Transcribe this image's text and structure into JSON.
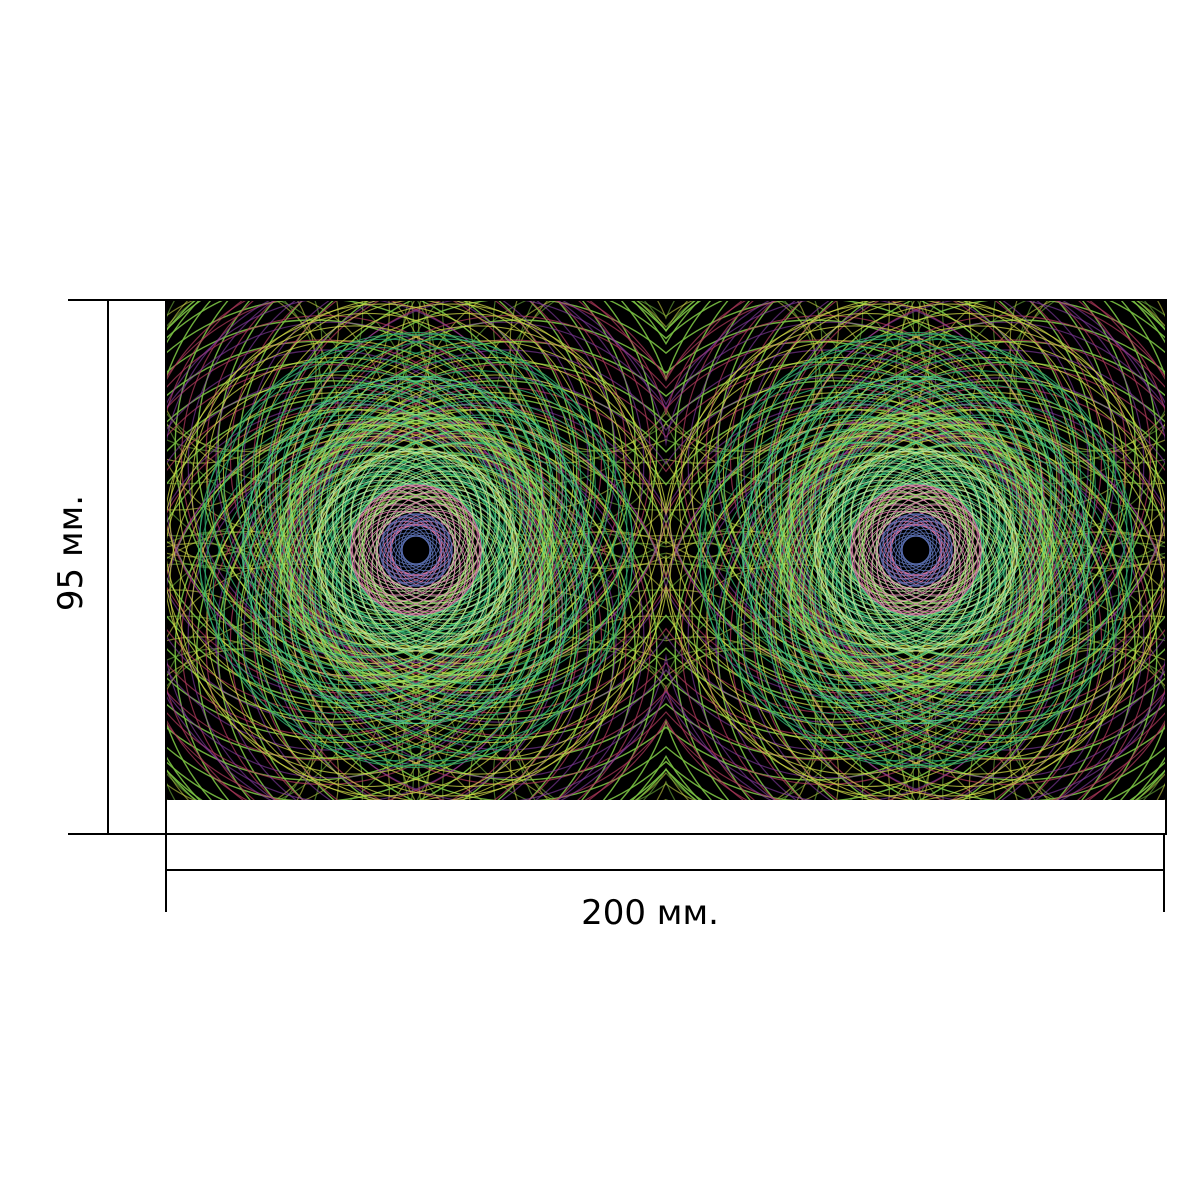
{
  "dimensions": {
    "height_label": "95 мм.",
    "width_label": "200 мм."
  },
  "artwork": {
    "description_colors": {
      "background": "#000000",
      "primary": "#7ac142",
      "secondary": "#2fae6f",
      "accent_a": "#8a3ea8",
      "accent_b": "#b33a5e",
      "accent_c": "#d6e04a",
      "center": "#5a6fb0"
    },
    "pattern_icon": "spirograph-pattern",
    "repeat_count": 2
  }
}
